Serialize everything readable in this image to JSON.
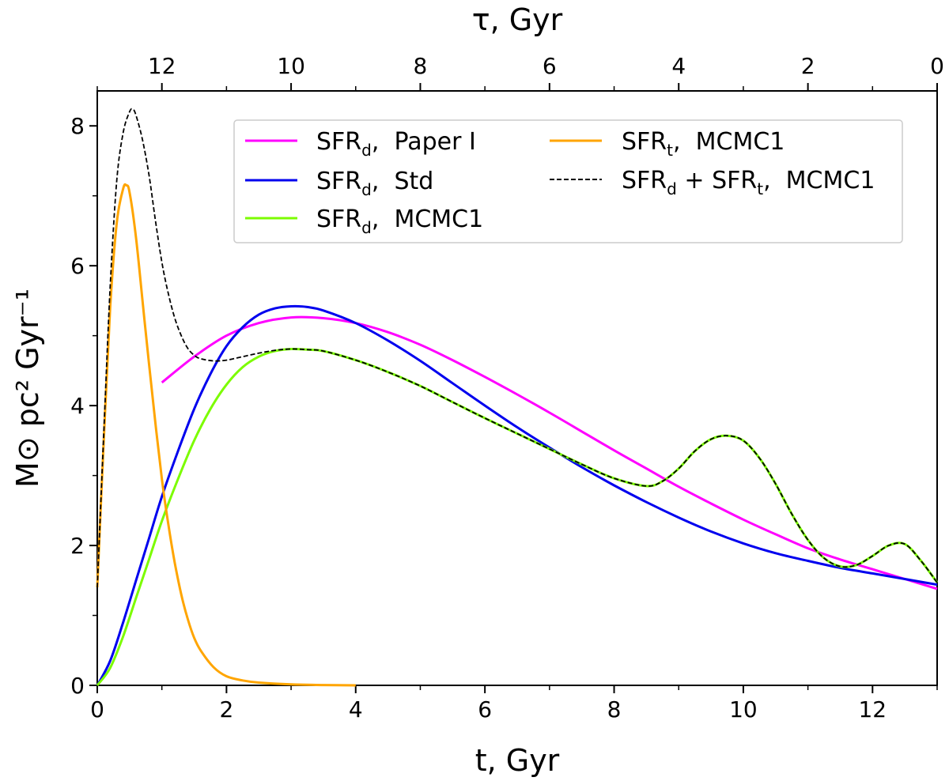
{
  "chart_data": {
    "type": "line",
    "xlabel": "t,  Gyr",
    "top_xlabel": "τ,  Gyr",
    "ylabel": "M⊙ pc² Gyr⁻¹",
    "xlim": [
      0,
      13
    ],
    "ylim": [
      0,
      8.5
    ],
    "x_ticks": [
      0,
      2,
      4,
      6,
      8,
      10,
      12
    ],
    "x_tick_labels": [
      "0",
      "2",
      "4",
      "6",
      "8",
      "10",
      "12"
    ],
    "x_minor_ticks": [
      1,
      3,
      5,
      7,
      9,
      11,
      13
    ],
    "y_ticks": [
      0,
      2,
      4,
      6,
      8
    ],
    "y_tick_labels": [
      "0",
      "2",
      "4",
      "6",
      "8"
    ],
    "y_minor_ticks": [
      1,
      3,
      5,
      7
    ],
    "top_ticks_tau": [
      12,
      10,
      8,
      6,
      4,
      2,
      0
    ],
    "top_tick_labels": [
      "12",
      "10",
      "8",
      "6",
      "4",
      "2",
      "0"
    ],
    "top_minor_ticks_tau": [
      13,
      11,
      9,
      7,
      5,
      3,
      1
    ],
    "tau_offset": 13,
    "legend": {
      "position": "top-right",
      "columns": 2
    },
    "series": [
      {
        "name": "SFR_d, Paper I",
        "legend_main": "SFR",
        "legend_sub": "d",
        "legend_rest": ",  Paper I",
        "color": "#ff00ff",
        "dashed": false,
        "x": [
          1.0,
          1.5,
          2.0,
          2.5,
          3.0,
          3.5,
          4.0,
          4.5,
          5.0,
          5.5,
          6.0,
          6.5,
          7.0,
          7.5,
          8.0,
          8.5,
          9.0,
          9.5,
          10.0,
          10.5,
          11.0,
          11.5,
          12.0,
          12.5,
          13.0
        ],
        "y": [
          4.33,
          4.7,
          5.0,
          5.18,
          5.26,
          5.25,
          5.18,
          5.05,
          4.87,
          4.65,
          4.41,
          4.16,
          3.9,
          3.63,
          3.36,
          3.1,
          2.84,
          2.6,
          2.37,
          2.16,
          1.96,
          1.8,
          1.66,
          1.52,
          1.38
        ]
      },
      {
        "name": "SFR_d, Std",
        "legend_main": "SFR",
        "legend_sub": "d",
        "legend_rest": ",  Std",
        "color": "#0000ee",
        "dashed": false,
        "x": [
          0.0,
          0.2,
          0.4,
          0.6,
          0.8,
          1.0,
          1.25,
          1.5,
          1.75,
          2.0,
          2.25,
          2.5,
          2.75,
          3.0,
          3.25,
          3.5,
          4.0,
          4.5,
          5.0,
          5.5,
          6.0,
          6.5,
          7.0,
          7.5,
          8.0,
          8.5,
          9.0,
          9.5,
          10.0,
          10.5,
          11.0,
          11.5,
          12.0,
          12.5,
          13.0
        ],
        "y": [
          0.0,
          0.35,
          0.9,
          1.5,
          2.1,
          2.7,
          3.35,
          3.95,
          4.45,
          4.85,
          5.12,
          5.3,
          5.39,
          5.42,
          5.41,
          5.36,
          5.18,
          4.93,
          4.64,
          4.32,
          4.0,
          3.69,
          3.4,
          3.12,
          2.86,
          2.62,
          2.4,
          2.2,
          2.03,
          1.89,
          1.78,
          1.68,
          1.6,
          1.52,
          1.44
        ]
      },
      {
        "name": "SFR_d, MCMC1",
        "legend_main": "SFR",
        "legend_sub": "d",
        "legend_rest": ",  MCMC1",
        "color": "#7cfc00",
        "dashed": false,
        "x": [
          0.0,
          0.2,
          0.4,
          0.6,
          0.8,
          1.0,
          1.25,
          1.5,
          1.75,
          2.0,
          2.25,
          2.5,
          2.75,
          3.0,
          3.25,
          3.5,
          4.0,
          4.5,
          5.0,
          5.5,
          6.0,
          6.5,
          7.0,
          7.5,
          8.0,
          8.5,
          8.75,
          9.0,
          9.25,
          9.5,
          9.75,
          10.0,
          10.25,
          10.5,
          10.75,
          11.0,
          11.25,
          11.5,
          11.75,
          12.0,
          12.25,
          12.5,
          12.75,
          13.0
        ],
        "y": [
          0.0,
          0.25,
          0.7,
          1.25,
          1.8,
          2.35,
          2.95,
          3.5,
          3.95,
          4.3,
          4.55,
          4.7,
          4.78,
          4.81,
          4.8,
          4.78,
          4.65,
          4.48,
          4.28,
          4.05,
          3.82,
          3.6,
          3.38,
          3.16,
          2.96,
          2.85,
          2.92,
          3.1,
          3.35,
          3.52,
          3.57,
          3.5,
          3.25,
          2.88,
          2.45,
          2.08,
          1.82,
          1.7,
          1.72,
          1.85,
          2.0,
          2.02,
          1.78,
          1.47
        ]
      },
      {
        "name": "SFR_t, MCMC1",
        "legend_main": "SFR",
        "legend_sub": "t",
        "legend_rest": ",  MCMC1",
        "color": "#ffa500",
        "dashed": false,
        "x": [
          0.0,
          0.1,
          0.2,
          0.3,
          0.4,
          0.45,
          0.5,
          0.6,
          0.7,
          0.8,
          0.9,
          1.0,
          1.1,
          1.2,
          1.3,
          1.4,
          1.5,
          1.6,
          1.8,
          2.0,
          2.25,
          2.5,
          3.0,
          3.5,
          4.0
        ],
        "y": [
          1.4,
          3.5,
          5.4,
          6.6,
          7.1,
          7.15,
          7.05,
          6.4,
          5.5,
          4.6,
          3.75,
          2.95,
          2.3,
          1.75,
          1.3,
          0.95,
          0.68,
          0.5,
          0.26,
          0.13,
          0.07,
          0.04,
          0.015,
          0.005,
          0.0
        ]
      },
      {
        "name": "SFR_d + SFR_t, MCMC1",
        "legend_main": "SFR",
        "legend_sub": "d",
        "legend_mid": " + SFR",
        "legend_sub2": "t",
        "legend_rest": ",  MCMC1",
        "color": "#000000",
        "dashed": true,
        "x": [
          0.0,
          0.1,
          0.2,
          0.3,
          0.4,
          0.5,
          0.55,
          0.6,
          0.7,
          0.8,
          0.9,
          1.0,
          1.1,
          1.2,
          1.3,
          1.4,
          1.5,
          1.6,
          1.8,
          2.0,
          2.25,
          2.5,
          2.75,
          3.0,
          3.25,
          3.5,
          4.0,
          4.5,
          5.0,
          5.5,
          6.0,
          6.5,
          7.0,
          7.5,
          8.0,
          8.5,
          8.75,
          9.0,
          9.25,
          9.5,
          9.75,
          10.0,
          10.25,
          10.5,
          10.75,
          11.0,
          11.25,
          11.5,
          11.75,
          12.0,
          12.25,
          12.5,
          12.75,
          13.0
        ],
        "y": [
          1.4,
          3.6,
          5.7,
          7.2,
          7.9,
          8.2,
          8.24,
          8.15,
          7.8,
          7.3,
          6.65,
          6.05,
          5.6,
          5.25,
          5.0,
          4.82,
          4.72,
          4.67,
          4.64,
          4.65,
          4.7,
          4.75,
          4.79,
          4.81,
          4.8,
          4.78,
          4.65,
          4.48,
          4.28,
          4.05,
          3.82,
          3.6,
          3.38,
          3.16,
          2.96,
          2.85,
          2.92,
          3.1,
          3.35,
          3.52,
          3.57,
          3.5,
          3.25,
          2.88,
          2.45,
          2.08,
          1.82,
          1.7,
          1.72,
          1.85,
          2.0,
          2.02,
          1.78,
          1.47
        ]
      }
    ]
  }
}
